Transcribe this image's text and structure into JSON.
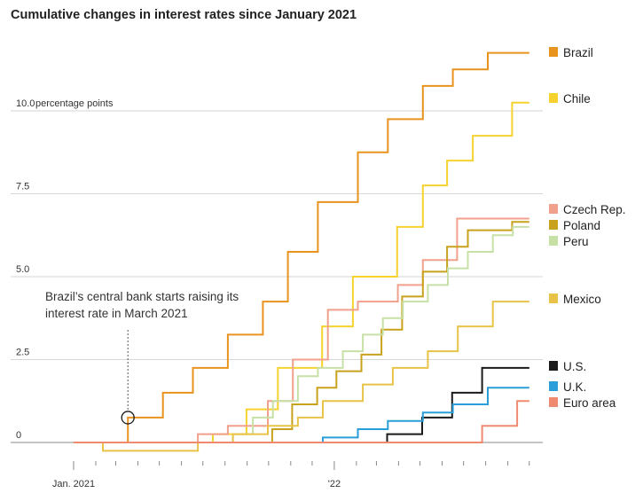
{
  "chart_data": {
    "type": "line",
    "title": "Cumulative changes in interest rates since January 2021",
    "unit_label": "percentage points",
    "ylim": [
      -0.5,
      12.5
    ],
    "yticks": [
      {
        "value": 0,
        "label": "0"
      },
      {
        "value": 2.5,
        "label": "2.5"
      },
      {
        "value": 5,
        "label": "5.0"
      },
      {
        "value": 7.5,
        "label": "7.5"
      },
      {
        "value": 10,
        "label": "10.0"
      }
    ],
    "xlim": [
      "2021-01-01",
      "2022-10-10"
    ],
    "xticks": [
      {
        "date": "2021-01-01",
        "label": "Jan. 2021"
      },
      {
        "date": "2022-01-01",
        "label": "'22"
      }
    ],
    "grid": true,
    "legend_position": "right",
    "annotation": {
      "lines": [
        "Brazil’s central bank starts raising its",
        "interest rate in March 2021"
      ],
      "date": "2021-03-18",
      "value": 0.75
    },
    "series": [
      {
        "name": "Brazil",
        "color": "#e8931e",
        "points": [
          [
            "2021-01-01",
            0
          ],
          [
            "2021-03-18",
            0
          ],
          [
            "2021-03-18",
            0.75
          ],
          [
            "2021-05-06",
            0.75
          ],
          [
            "2021-05-06",
            1.5
          ],
          [
            "2021-06-17",
            1.5
          ],
          [
            "2021-06-17",
            2.25
          ],
          [
            "2021-08-05",
            2.25
          ],
          [
            "2021-08-05",
            3.25
          ],
          [
            "2021-09-23",
            3.25
          ],
          [
            "2021-09-23",
            4.25
          ],
          [
            "2021-10-28",
            4.25
          ],
          [
            "2021-10-28",
            5.75
          ],
          [
            "2021-12-09",
            5.75
          ],
          [
            "2021-12-09",
            7.25
          ],
          [
            "2022-02-03",
            7.25
          ],
          [
            "2022-02-03",
            8.75
          ],
          [
            "2022-03-17",
            8.75
          ],
          [
            "2022-03-17",
            9.75
          ],
          [
            "2022-05-05",
            9.75
          ],
          [
            "2022-05-05",
            10.75
          ],
          [
            "2022-06-16",
            10.75
          ],
          [
            "2022-06-16",
            11.25
          ],
          [
            "2022-08-04",
            11.25
          ],
          [
            "2022-08-04",
            11.75
          ],
          [
            "2022-10-01",
            11.75
          ]
        ]
      },
      {
        "name": "Chile",
        "color": "#f5d22e",
        "points": [
          [
            "2021-01-01",
            0
          ],
          [
            "2021-07-15",
            0
          ],
          [
            "2021-07-15",
            0.25
          ],
          [
            "2021-08-31",
            0.25
          ],
          [
            "2021-08-31",
            1
          ],
          [
            "2021-10-14",
            1
          ],
          [
            "2021-10-14",
            2.25
          ],
          [
            "2021-12-15",
            2.25
          ],
          [
            "2021-12-15",
            3.5
          ],
          [
            "2022-01-27",
            3.5
          ],
          [
            "2022-01-27",
            5
          ],
          [
            "2022-03-30",
            5
          ],
          [
            "2022-03-30",
            6.5
          ],
          [
            "2022-05-05",
            6.5
          ],
          [
            "2022-05-05",
            7.75
          ],
          [
            "2022-06-08",
            7.75
          ],
          [
            "2022-06-08",
            8.5
          ],
          [
            "2022-07-14",
            8.5
          ],
          [
            "2022-07-14",
            9.25
          ],
          [
            "2022-09-07",
            9.25
          ],
          [
            "2022-09-07",
            10.25
          ],
          [
            "2022-10-01",
            10.25
          ]
        ]
      },
      {
        "name": "Czech Rep.",
        "color": "#f0a08b",
        "points": [
          [
            "2021-01-01",
            0
          ],
          [
            "2021-06-24",
            0
          ],
          [
            "2021-06-24",
            0.25
          ],
          [
            "2021-08-05",
            0.25
          ],
          [
            "2021-08-05",
            0.5
          ],
          [
            "2021-09-30",
            0.5
          ],
          [
            "2021-09-30",
            1.25
          ],
          [
            "2021-11-04",
            1.25
          ],
          [
            "2021-11-04",
            2.5
          ],
          [
            "2021-12-23",
            2.5
          ],
          [
            "2021-12-23",
            4
          ],
          [
            "2022-02-03",
            4
          ],
          [
            "2022-02-03",
            4.25
          ],
          [
            "2022-03-31",
            4.25
          ],
          [
            "2022-03-31",
            4.75
          ],
          [
            "2022-05-05",
            4.75
          ],
          [
            "2022-05-05",
            5.5
          ],
          [
            "2022-06-22",
            5.5
          ],
          [
            "2022-06-22",
            6.75
          ],
          [
            "2022-10-01",
            6.75
          ]
        ]
      },
      {
        "name": "Poland",
        "color": "#c8a21c",
        "points": [
          [
            "2021-01-01",
            0
          ],
          [
            "2021-10-06",
            0
          ],
          [
            "2021-10-06",
            0.4
          ],
          [
            "2021-11-03",
            0.4
          ],
          [
            "2021-11-03",
            1.15
          ],
          [
            "2021-12-08",
            1.15
          ],
          [
            "2021-12-08",
            1.65
          ],
          [
            "2022-01-04",
            1.65
          ],
          [
            "2022-01-04",
            2.15
          ],
          [
            "2022-02-08",
            2.15
          ],
          [
            "2022-02-08",
            2.65
          ],
          [
            "2022-03-08",
            2.65
          ],
          [
            "2022-03-08",
            3.4
          ],
          [
            "2022-04-06",
            3.4
          ],
          [
            "2022-04-06",
            4.4
          ],
          [
            "2022-05-05",
            4.4
          ],
          [
            "2022-05-05",
            5.15
          ],
          [
            "2022-06-08",
            5.15
          ],
          [
            "2022-06-08",
            5.9
          ],
          [
            "2022-07-07",
            5.9
          ],
          [
            "2022-07-07",
            6.4
          ],
          [
            "2022-09-07",
            6.4
          ],
          [
            "2022-09-07",
            6.65
          ],
          [
            "2022-10-01",
            6.65
          ]
        ]
      },
      {
        "name": "Peru",
        "color": "#c7e0a6",
        "points": [
          [
            "2021-01-01",
            0
          ],
          [
            "2021-08-12",
            0
          ],
          [
            "2021-08-12",
            0.25
          ],
          [
            "2021-09-09",
            0.25
          ],
          [
            "2021-09-09",
            0.75
          ],
          [
            "2021-10-07",
            0.75
          ],
          [
            "2021-10-07",
            1.25
          ],
          [
            "2021-11-11",
            1.25
          ],
          [
            "2021-11-11",
            2
          ],
          [
            "2021-12-09",
            2
          ],
          [
            "2021-12-09",
            2.25
          ],
          [
            "2022-01-13",
            2.25
          ],
          [
            "2022-01-13",
            2.75
          ],
          [
            "2022-02-10",
            2.75
          ],
          [
            "2022-02-10",
            3.25
          ],
          [
            "2022-03-10",
            3.25
          ],
          [
            "2022-03-10",
            3.75
          ],
          [
            "2022-04-07",
            3.75
          ],
          [
            "2022-04-07",
            4.25
          ],
          [
            "2022-05-12",
            4.25
          ],
          [
            "2022-05-12",
            4.75
          ],
          [
            "2022-06-09",
            4.75
          ],
          [
            "2022-06-09",
            5.25
          ],
          [
            "2022-07-07",
            5.25
          ],
          [
            "2022-07-07",
            5.75
          ],
          [
            "2022-08-11",
            5.75
          ],
          [
            "2022-08-11",
            6.25
          ],
          [
            "2022-09-08",
            6.25
          ],
          [
            "2022-09-08",
            6.5
          ],
          [
            "2022-10-01",
            6.5
          ]
        ]
      },
      {
        "name": "Mexico",
        "color": "#e8c347",
        "points": [
          [
            "2021-01-01",
            0
          ],
          [
            "2021-02-11",
            0
          ],
          [
            "2021-02-11",
            -0.25
          ],
          [
            "2021-06-24",
            -0.25
          ],
          [
            "2021-06-24",
            0
          ],
          [
            "2021-08-12",
            0
          ],
          [
            "2021-08-12",
            0.25
          ],
          [
            "2021-09-30",
            0.25
          ],
          [
            "2021-09-30",
            0.5
          ],
          [
            "2021-11-11",
            0.5
          ],
          [
            "2021-11-11",
            0.75
          ],
          [
            "2021-12-16",
            0.75
          ],
          [
            "2021-12-16",
            1.25
          ],
          [
            "2022-02-10",
            1.25
          ],
          [
            "2022-02-10",
            1.75
          ],
          [
            "2022-03-24",
            1.75
          ],
          [
            "2022-03-24",
            2.25
          ],
          [
            "2022-05-12",
            2.25
          ],
          [
            "2022-05-12",
            2.75
          ],
          [
            "2022-06-23",
            2.75
          ],
          [
            "2022-06-23",
            3.5
          ],
          [
            "2022-08-11",
            3.5
          ],
          [
            "2022-08-11",
            4.25
          ],
          [
            "2022-10-01",
            4.25
          ]
        ]
      },
      {
        "name": "U.S.",
        "color": "#1a1a1a",
        "points": [
          [
            "2021-01-01",
            0
          ],
          [
            "2022-03-16",
            0
          ],
          [
            "2022-03-16",
            0.25
          ],
          [
            "2022-05-04",
            0.25
          ],
          [
            "2022-05-04",
            0.75
          ],
          [
            "2022-06-15",
            0.75
          ],
          [
            "2022-06-15",
            1.5
          ],
          [
            "2022-07-27",
            1.5
          ],
          [
            "2022-07-27",
            2.25
          ],
          [
            "2022-10-01",
            2.25
          ]
        ]
      },
      {
        "name": "U.K.",
        "color": "#2a9ed8",
        "points": [
          [
            "2021-01-01",
            0
          ],
          [
            "2021-12-16",
            0
          ],
          [
            "2021-12-16",
            0.15
          ],
          [
            "2022-02-03",
            0.15
          ],
          [
            "2022-02-03",
            0.4
          ],
          [
            "2022-03-17",
            0.4
          ],
          [
            "2022-03-17",
            0.65
          ],
          [
            "2022-05-05",
            0.65
          ],
          [
            "2022-05-05",
            0.9
          ],
          [
            "2022-06-16",
            0.9
          ],
          [
            "2022-06-16",
            1.15
          ],
          [
            "2022-08-04",
            1.15
          ],
          [
            "2022-08-04",
            1.65
          ],
          [
            "2022-10-01",
            1.65
          ]
        ]
      },
      {
        "name": "Euro area",
        "color": "#ef8a70",
        "points": [
          [
            "2021-01-01",
            0
          ],
          [
            "2022-07-27",
            0
          ],
          [
            "2022-07-27",
            0.5
          ],
          [
            "2022-09-14",
            0.5
          ],
          [
            "2022-09-14",
            1.25
          ],
          [
            "2022-10-01",
            1.25
          ]
        ]
      }
    ],
    "legend": [
      {
        "name": "Brazil",
        "color": "#e8931e"
      },
      {
        "name": "Chile",
        "color": "#f5d22e"
      },
      {
        "name": "Czech Rep.",
        "color": "#f0a08b"
      },
      {
        "name": "Poland",
        "color": "#c8a21c"
      },
      {
        "name": "Peru",
        "color": "#c7e0a6"
      },
      {
        "name": "Mexico",
        "color": "#e8c347"
      },
      {
        "name": "U.S.",
        "color": "#1a1a1a"
      },
      {
        "name": "U.K.",
        "color": "#2a9ed8"
      },
      {
        "name": "Euro area",
        "color": "#ef8a70"
      }
    ]
  }
}
